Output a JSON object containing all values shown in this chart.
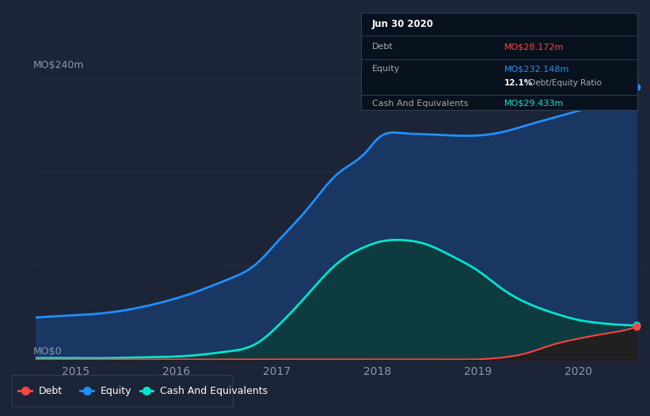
{
  "background_color": "#1c2537",
  "plot_bg_color": "#1c2537",
  "equity_color": "#1e90ff",
  "debt_color": "#ff4444",
  "cash_color": "#00e5cc",
  "grid_color": "#253045",
  "tooltip_bg": "#080d14",
  "tooltip_title": "Jun 30 2020",
  "tooltip_debt_label": "Debt",
  "tooltip_debt_value": "MO$28.172m",
  "tooltip_equity_label": "Equity",
  "tooltip_equity_value": "MO$232.148m",
  "tooltip_ratio_bold": "12.1%",
  "tooltip_ratio_normal": " Debt/Equity Ratio",
  "tooltip_cash_label": "Cash And Equivalents",
  "tooltip_cash_value": "MO$29.433m",
  "x_ticks": [
    2015,
    2016,
    2017,
    2018,
    2019,
    2020
  ],
  "ylabel_top": "MO$240m",
  "ylabel_bottom": "MO$0",
  "years": [
    2014.6,
    2015.0,
    2015.3,
    2015.6,
    2015.9,
    2016.2,
    2016.5,
    2016.8,
    2017.0,
    2017.3,
    2017.6,
    2017.9,
    2018.0,
    2018.25,
    2018.5,
    2018.75,
    2019.0,
    2019.25,
    2019.5,
    2019.75,
    2020.0,
    2020.25,
    2020.5,
    2020.58
  ],
  "equity": [
    36,
    38,
    40,
    44,
    50,
    58,
    68,
    82,
    100,
    128,
    158,
    178,
    188,
    193,
    192,
    191,
    191,
    194,
    200,
    206,
    212,
    220,
    230,
    232
  ],
  "debt": [
    0.3,
    0.3,
    0.3,
    0.3,
    0.3,
    0.3,
    0.3,
    0.3,
    0.3,
    0.3,
    0.3,
    0.3,
    0.3,
    0.3,
    0.3,
    0.3,
    0.5,
    2.0,
    6.0,
    13.0,
    18.0,
    22.0,
    26.0,
    28.2
  ],
  "cash": [
    1.5,
    1.5,
    1.5,
    2.0,
    2.5,
    4.0,
    7.0,
    14.0,
    28.0,
    55.0,
    82.0,
    97.0,
    100.0,
    102.0,
    98.0,
    88.0,
    76.0,
    60.0,
    48.0,
    40.0,
    34.0,
    31.0,
    29.5,
    29.4
  ]
}
